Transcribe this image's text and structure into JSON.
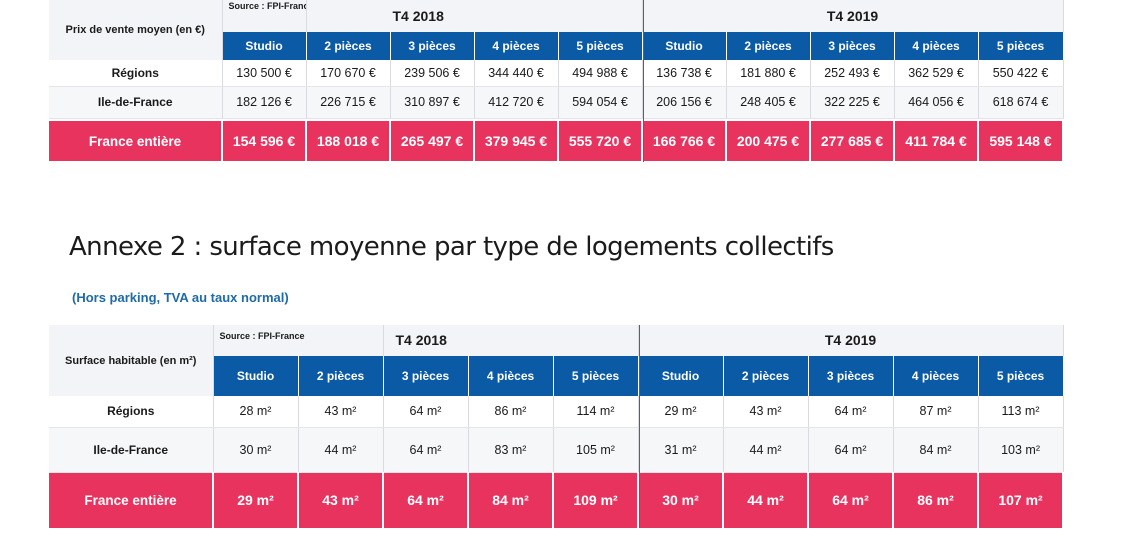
{
  "table1": {
    "corner_label": "Prix de vente moyen (en €)",
    "source": "Source : FPI-France",
    "period_a": "T4 2018",
    "period_b": "T4 2019",
    "columns": [
      "Studio",
      "2 pièces",
      "3 pièces",
      "4 pièces",
      "5 pièces",
      "Studio",
      "2 pièces",
      "3 pièces",
      "4 pièces",
      "5 pièces"
    ],
    "rows": [
      {
        "label": "Régions",
        "values": [
          "130 500 €",
          "170 670 €",
          "239 506 €",
          "344 440 €",
          "494 988 €",
          "136 738 €",
          "181 880 €",
          "252 493 €",
          "362 529 €",
          "550 422 €"
        ]
      },
      {
        "label": "Ile-de-France",
        "values": [
          "182 126 €",
          "226 715 €",
          "310 897 €",
          "412 720 €",
          "594 054 €",
          "206 156 €",
          "248 405 €",
          "322 225 €",
          "464 056 €",
          "618 674 €"
        ]
      }
    ],
    "total": {
      "label": "France entière",
      "values": [
        "154 596 €",
        "188 018 €",
        "265 497 €",
        "379 945 €",
        "555 720 €",
        "166 766 €",
        "200 475 €",
        "277 685 €",
        "411 784 €",
        "595 148 €"
      ]
    }
  },
  "annex_title": "Annexe  2 : surface moyenne par type de logements collectifs",
  "annex_subtitle": "(Hors parking, TVA au taux normal)",
  "table2": {
    "corner_label": "Surface habitable (en m²)",
    "source": "Source : FPI-France",
    "period_a": "T4 2018",
    "period_b": "T4 2019",
    "columns": [
      "Studio",
      "2 pièces",
      "3 pièces",
      "4 pièces",
      "5 pièces",
      "Studio",
      "2 pièces",
      "3 pièces",
      "4 pièces",
      "5 pièces"
    ],
    "rows": [
      {
        "label": "Régions",
        "values": [
          "28 m²",
          "43 m²",
          "64 m²",
          "86 m²",
          "114 m²",
          "29 m²",
          "43 m²",
          "64 m²",
          "87 m²",
          "113 m²"
        ]
      },
      {
        "label": "Ile-de-France",
        "values": [
          "30 m²",
          "44 m²",
          "64 m²",
          "83 m²",
          "105 m²",
          "31 m²",
          "44 m²",
          "64 m²",
          "84 m²",
          "103 m²"
        ]
      }
    ],
    "total": {
      "label": "France entière",
      "values": [
        "29 m²",
        "43 m²",
        "64 m²",
        "84 m²",
        "109 m²",
        "30 m²",
        "44 m²",
        "64 m²",
        "86 m²",
        "107 m²"
      ]
    }
  },
  "colors": {
    "header_blue": "#0b5aa5",
    "total_pink": "#e8335f",
    "subtitle_blue": "#1f6aa8"
  }
}
